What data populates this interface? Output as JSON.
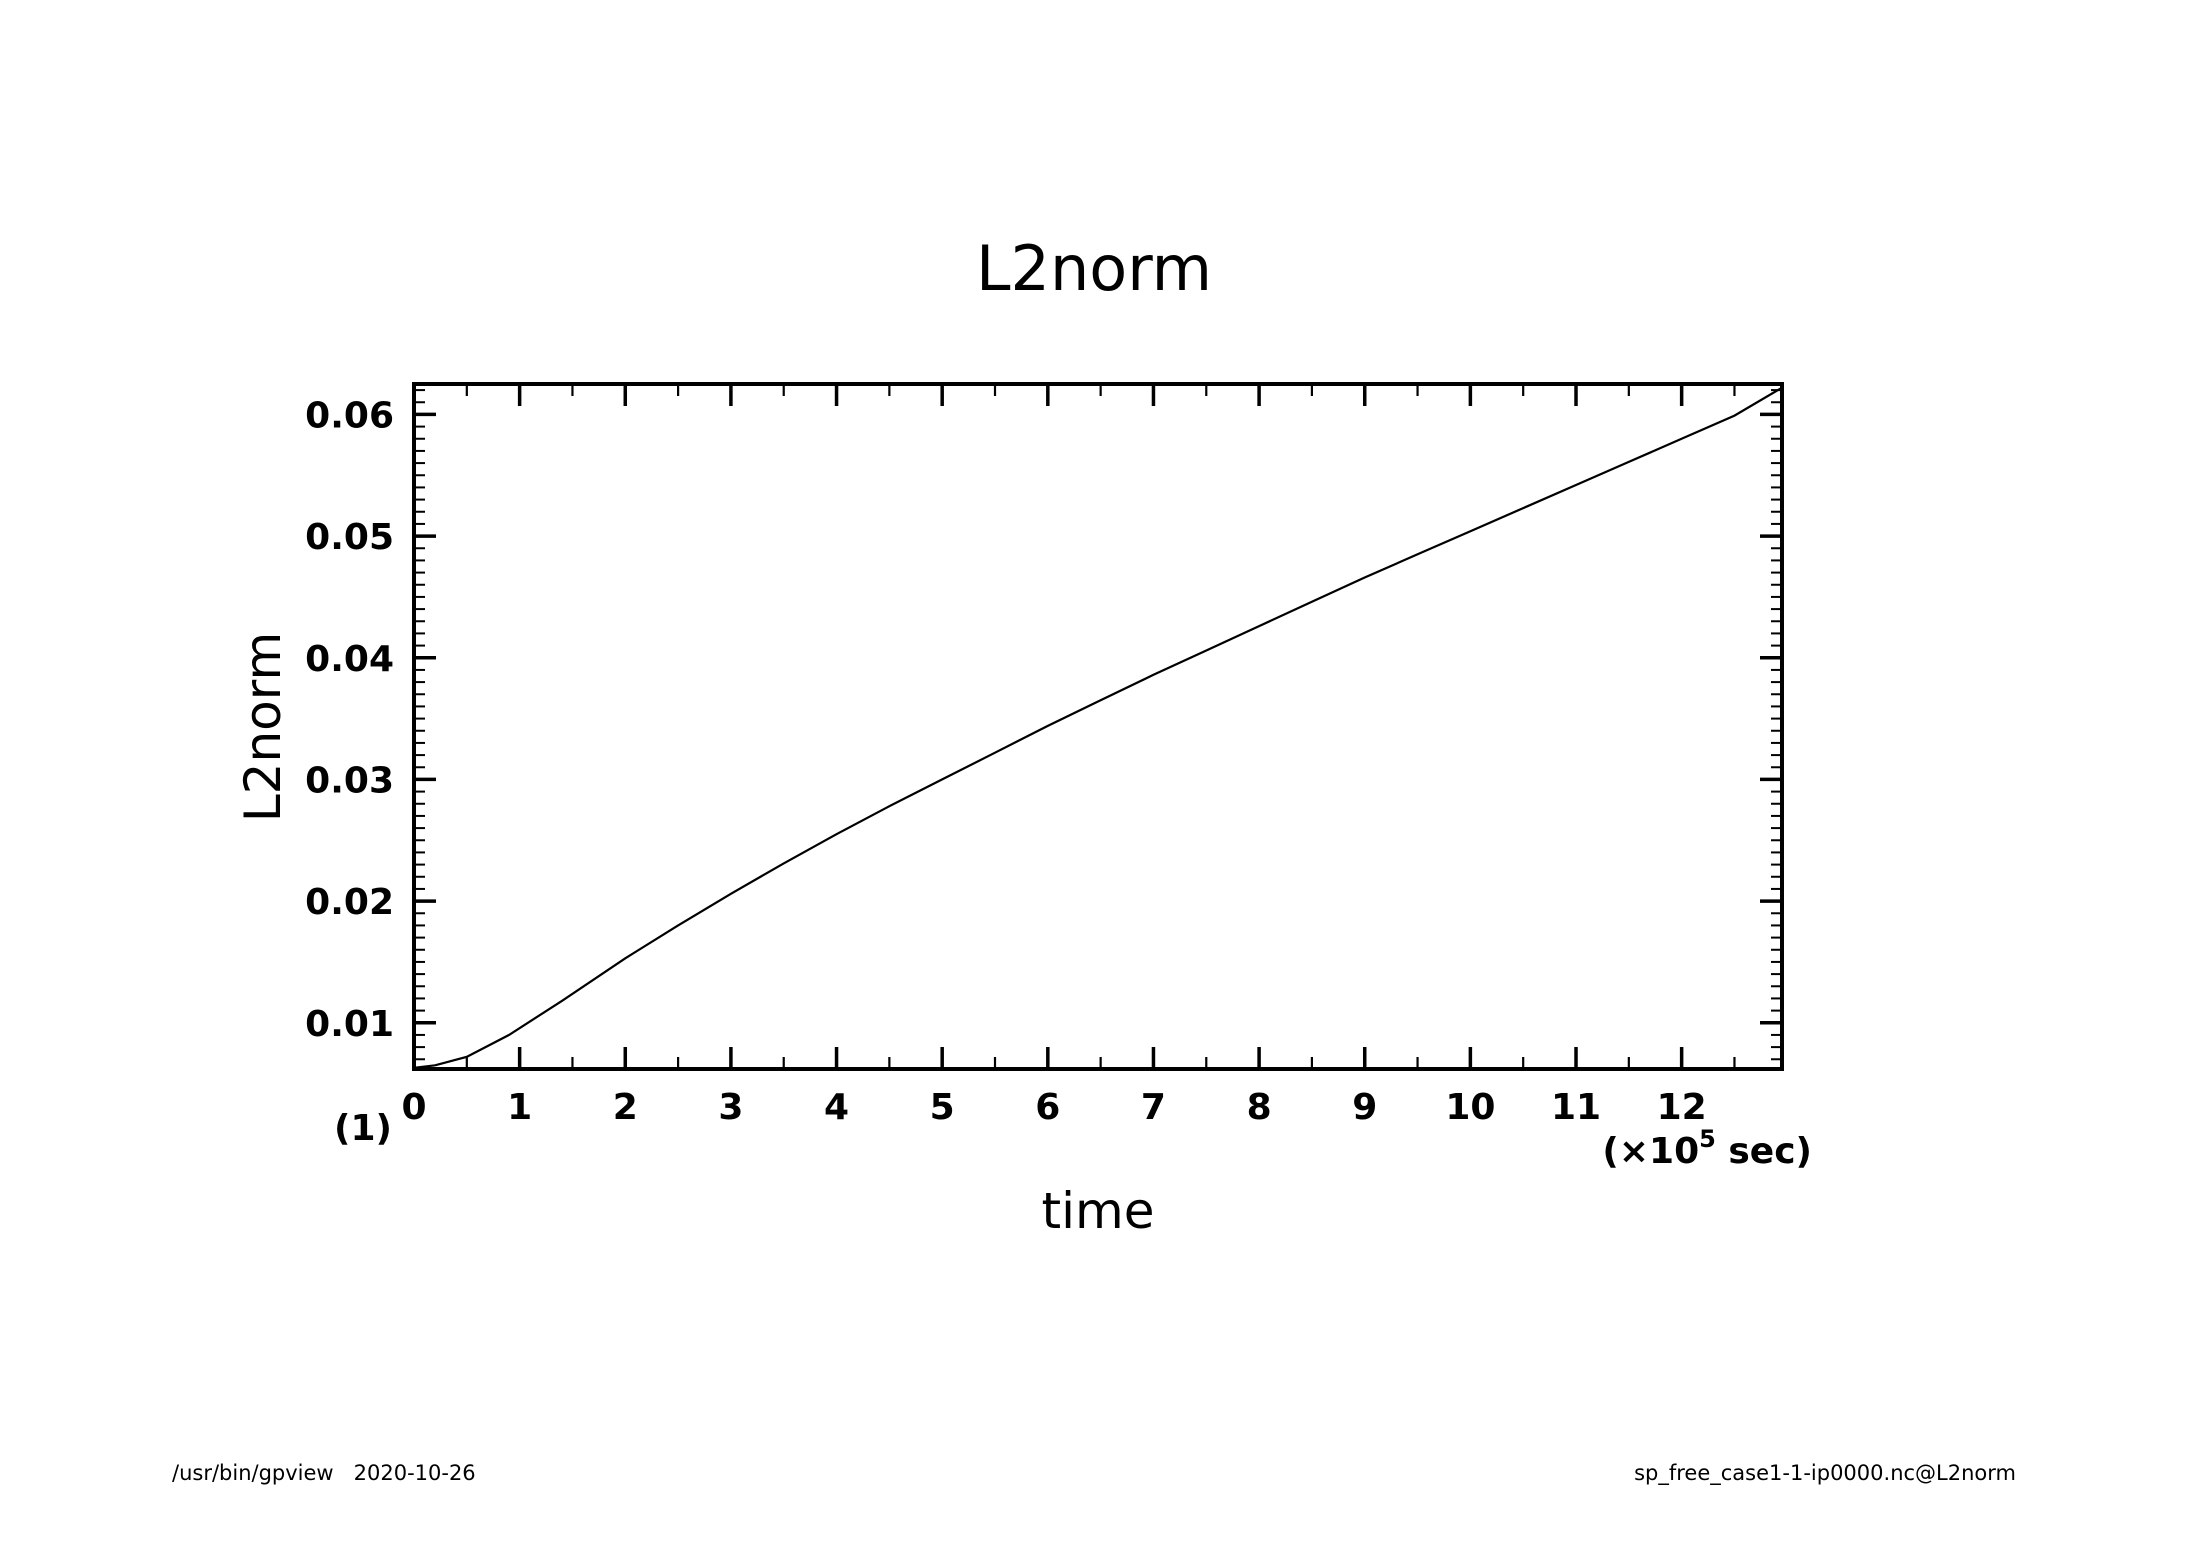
{
  "chart_data": {
    "type": "line",
    "title": "L2norm",
    "xlabel": "time",
    "ylabel": "L2norm",
    "x_unit_label": "(×10",
    "x_unit_exp": "5",
    "x_unit_suffix": " sec)",
    "panel_label": "(1)",
    "xlim": [
      0,
      12.95
    ],
    "ylim": [
      0.0062,
      0.0625
    ],
    "x_ticks": [
      0,
      1,
      2,
      3,
      4,
      5,
      6,
      7,
      8,
      9,
      10,
      11,
      12
    ],
    "x_tick_labels": [
      "0",
      "1",
      "2",
      "3",
      "4",
      "5",
      "6",
      "7",
      "8",
      "9",
      "10",
      "11",
      "12"
    ],
    "y_ticks": [
      0.01,
      0.02,
      0.03,
      0.04,
      0.05,
      0.06
    ],
    "y_tick_labels": [
      "0.01",
      "0.02",
      "0.03",
      "0.04",
      "0.05",
      "0.06"
    ],
    "grid": false,
    "line_color": "#000000",
    "series": [
      {
        "x": [
          0,
          0.2,
          0.5,
          0.9,
          1.4,
          2.0,
          2.5,
          3.0,
          3.5,
          4.0,
          4.5,
          5.0,
          5.5,
          6.0,
          6.5,
          7.0,
          7.5,
          8.0,
          8.5,
          9.0,
          9.5,
          10.0,
          10.5,
          11.0,
          11.5,
          12.0,
          12.5,
          12.95
        ],
        "y": [
          0.0063,
          0.0065,
          0.0072,
          0.009,
          0.0118,
          0.0153,
          0.018,
          0.0206,
          0.0231,
          0.0255,
          0.0278,
          0.03,
          0.0322,
          0.0344,
          0.0365,
          0.0386,
          0.0406,
          0.0426,
          0.0446,
          0.0466,
          0.0485,
          0.0504,
          0.0523,
          0.0542,
          0.0561,
          0.058,
          0.0599,
          0.0622
        ]
      }
    ]
  },
  "footer": {
    "left": "/usr/bin/gpview   2020-10-26",
    "right": "sp_free_case1-1-ip0000.nc@L2norm"
  }
}
